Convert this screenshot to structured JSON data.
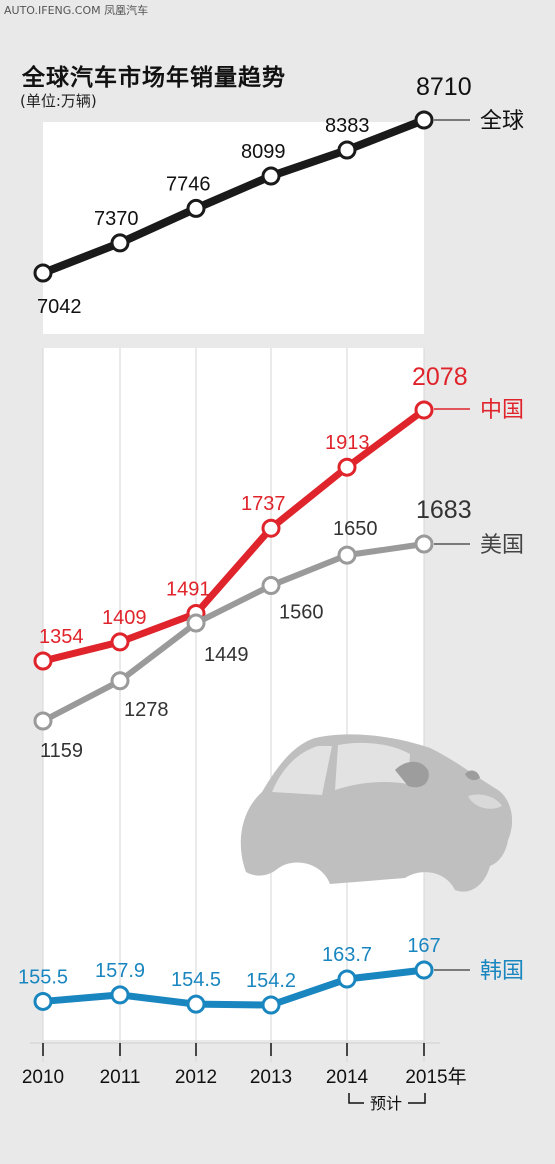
{
  "header": {
    "watermark": "AUTO.IFENG.COM 凤凰汽车",
    "title": "全球汽车市场年销量趋势",
    "unit": "(单位:万辆)"
  },
  "chart_data": {
    "type": "line",
    "title": "全球汽车市场年销量趋势",
    "subtitle": "(单位:万辆)",
    "x": [
      "2010",
      "2011",
      "2012",
      "2013",
      "2014",
      "2015年"
    ],
    "forecast_note": "预计",
    "series": [
      {
        "name": "全球",
        "color": "#1a1a1a",
        "values": [
          7042,
          7370,
          7746,
          8099,
          8383,
          8710
        ],
        "labels": [
          "7042",
          "7370",
          "7746",
          "8099",
          "8383",
          "8710"
        ]
      },
      {
        "name": "中国",
        "color": "#e0242c",
        "values": [
          1354,
          1409,
          1491,
          1737,
          1913,
          2078
        ],
        "labels": [
          "1354",
          "1409",
          "1491",
          "1737",
          "1913",
          "2078"
        ]
      },
      {
        "name": "美国",
        "color": "#9a9a9a",
        "values": [
          1159,
          1278,
          1449,
          1560,
          1650,
          1683
        ],
        "labels": [
          "1159",
          "1278",
          "1449",
          "1560",
          "1650",
          "1683"
        ]
      },
      {
        "name": "韩国",
        "color": "#1a86c0",
        "values": [
          155.5,
          157.9,
          154.5,
          154.2,
          163.7,
          167
        ],
        "labels": [
          "155.5",
          "157.9",
          "154.5",
          "154.2",
          "163.7",
          "167"
        ]
      }
    ]
  }
}
